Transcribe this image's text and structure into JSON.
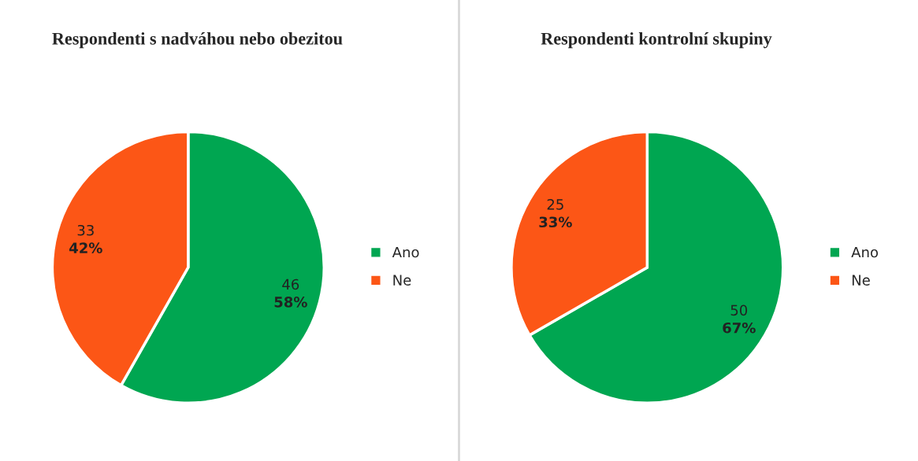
{
  "chart_data": [
    {
      "type": "pie",
      "title": "Respondenti s nadváhou nebo obezitou",
      "categories": [
        "Ano",
        "Ne"
      ],
      "values": [
        46,
        33
      ],
      "colors": [
        "#00a651",
        "#fc5616"
      ],
      "value_labels": [
        "46\n58%",
        "33\n42%"
      ],
      "legend": "right"
    },
    {
      "type": "pie",
      "title": "Respondenti kontrolní skupiny",
      "categories": [
        "Ano",
        "Ne"
      ],
      "values": [
        50,
        25
      ],
      "colors": [
        "#00a651",
        "#fc5616"
      ],
      "value_labels": [
        "50\n67%",
        "25\n33%"
      ],
      "legend": "right"
    }
  ]
}
